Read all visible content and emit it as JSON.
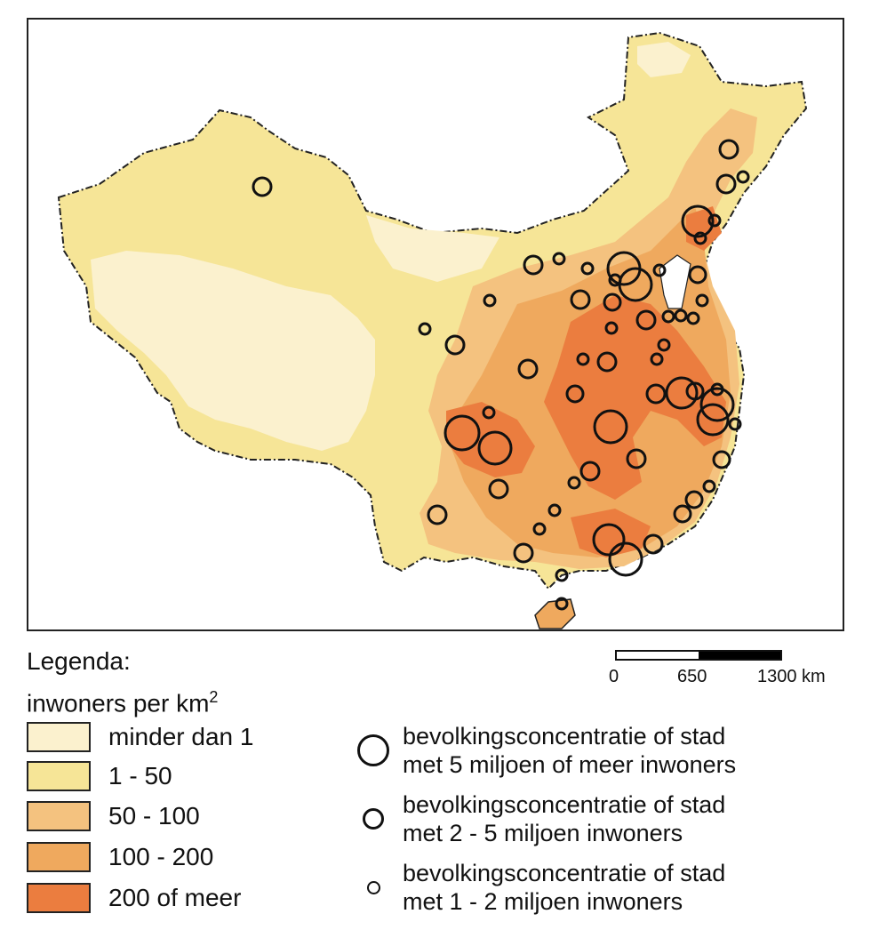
{
  "legend": {
    "title_line1": "Legenda:",
    "title_line2": "inwoners per km",
    "title_sup": "2",
    "density_classes": [
      {
        "label": "minder dan 1",
        "color": "#FBF1CE"
      },
      {
        "label": "1 - 50",
        "color": "#F6E597"
      },
      {
        "label": "50 - 100",
        "color": "#F4C27F"
      },
      {
        "label": "100 - 200",
        "color": "#EFA95E"
      },
      {
        "label": "200 of meer",
        "color": "#EB7D3F"
      }
    ],
    "city_classes": [
      {
        "line1": "bevolkingsconcentratie of stad",
        "line2": "met 5 miljoen of meer inwoners",
        "size": "large"
      },
      {
        "line1": "bevolkingsconcentratie of stad",
        "line2": "met 2 - 5 miljoen inwoners",
        "size": "medium"
      },
      {
        "line1": "bevolkingsconcentratie of stad",
        "line2": "met 1 - 2 miljoen inwoners",
        "size": "small"
      }
    ]
  },
  "scale": {
    "labels": [
      "0",
      "650",
      "1300 km"
    ],
    "colors": [
      "#ffffff",
      "#000000"
    ]
  },
  "map": {
    "border_color": "#222222"
  }
}
